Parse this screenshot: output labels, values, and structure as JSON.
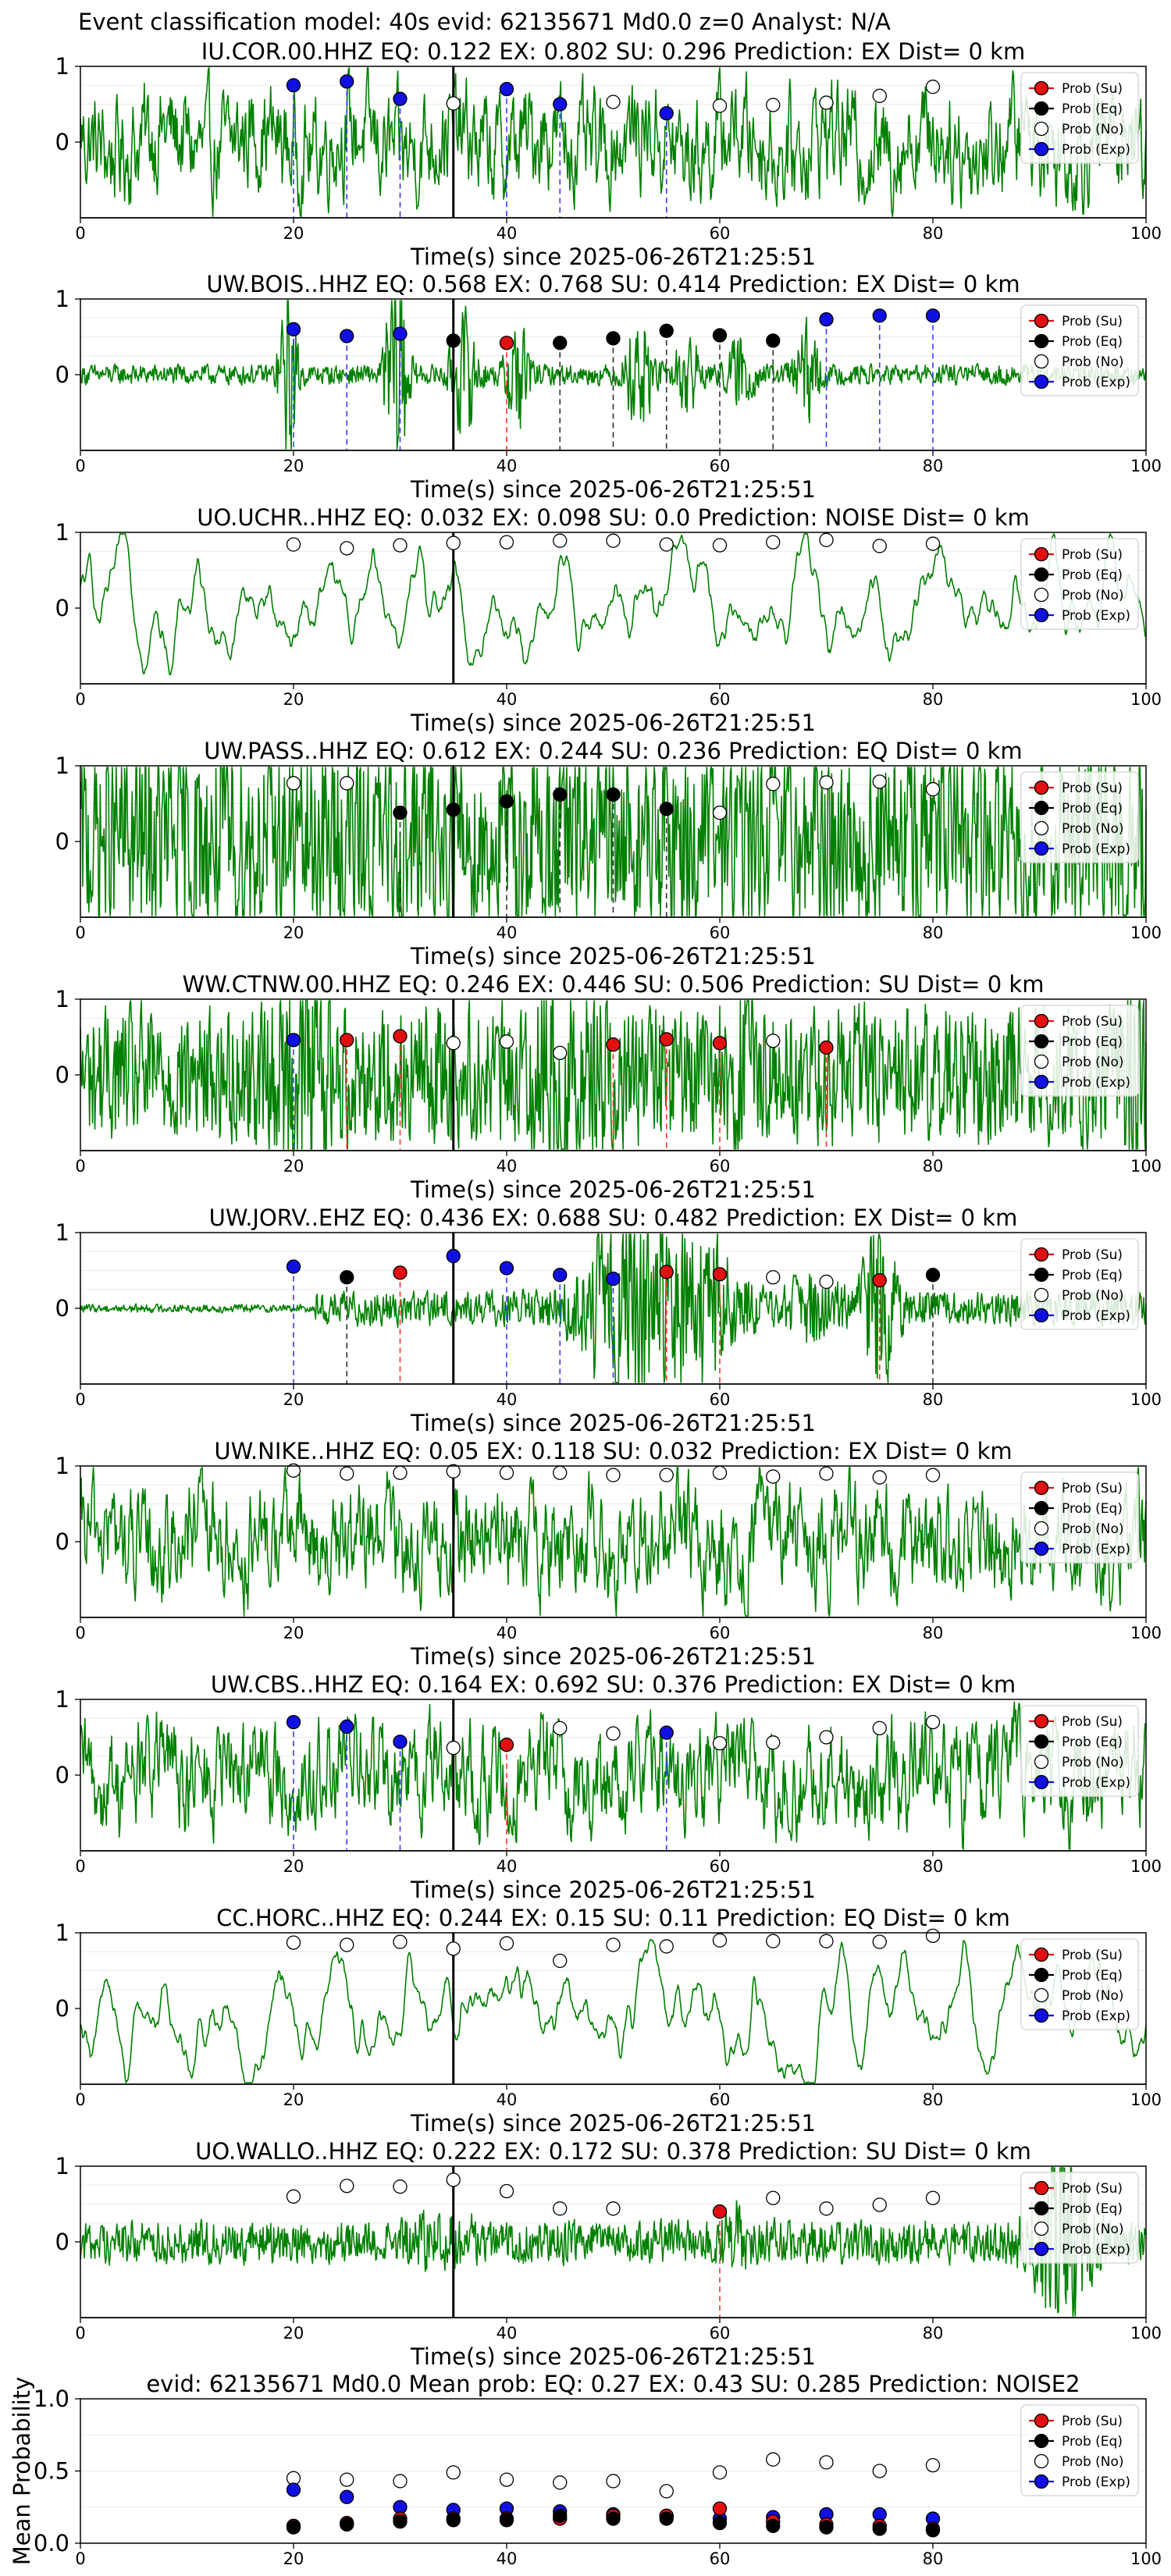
{
  "figure": {
    "suptitle": "Event classification model: 40s evid: 62135671 Md0.0 z=0 Analyst: N/A",
    "xlabel": "Time(s) since 2025-06-26T21:25:51",
    "legend": [
      "Prob (Su)",
      "Prob (Eq)",
      "Prob (No)",
      "Prob (Exp)"
    ],
    "colors": {
      "trace": "#008000",
      "su": "#e01010",
      "eq": "#000000",
      "no": "#ffffff",
      "exp": "#1010e0",
      "dash_exp": "#3a3aff",
      "dash_eq": "#303030",
      "dash_su": "#ff3030",
      "pick_line": "#000000"
    }
  },
  "chart_data": [
    {
      "type": "line",
      "title": "IU.COR.00.HHZ   EQ: 0.122  EX: 0.802  SU: 0.296   Prediction: EX    Dist= 0 km",
      "xlim": [
        0,
        100
      ],
      "ylim": [
        -1,
        1
      ],
      "xticks": [
        0,
        20,
        40,
        60,
        80,
        100
      ],
      "yticks": [
        0,
        1
      ],
      "pick_time": 35,
      "envelope": "noisy",
      "points": [
        {
          "x": 20,
          "y": 0.75,
          "c": "exp"
        },
        {
          "x": 25,
          "y": 0.8,
          "c": "exp"
        },
        {
          "x": 30,
          "y": 0.57,
          "c": "exp"
        },
        {
          "x": 35,
          "y": 0.51,
          "c": "no"
        },
        {
          "x": 40,
          "y": 0.7,
          "c": "exp"
        },
        {
          "x": 45,
          "y": 0.5,
          "c": "exp"
        },
        {
          "x": 50,
          "y": 0.53,
          "c": "no"
        },
        {
          "x": 55,
          "y": 0.38,
          "c": "exp"
        },
        {
          "x": 60,
          "y": 0.48,
          "c": "no"
        },
        {
          "x": 65,
          "y": 0.49,
          "c": "no"
        },
        {
          "x": 70,
          "y": 0.52,
          "c": "no"
        },
        {
          "x": 75,
          "y": 0.61,
          "c": "no"
        },
        {
          "x": 80,
          "y": 0.73,
          "c": "no"
        }
      ]
    },
    {
      "type": "line",
      "title": "UW.BOIS..HHZ   EQ: 0.568  EX: 0.768  SU: 0.414   Prediction: EX    Dist= 0 km",
      "xlim": [
        0,
        100
      ],
      "ylim": [
        -1,
        1
      ],
      "xticks": [
        0,
        20,
        40,
        60,
        80,
        100
      ],
      "yticks": [
        0,
        1
      ],
      "pick_time": 35,
      "envelope": "quiet_bursts",
      "points": [
        {
          "x": 20,
          "y": 0.6,
          "c": "exp"
        },
        {
          "x": 25,
          "y": 0.51,
          "c": "exp"
        },
        {
          "x": 30,
          "y": 0.54,
          "c": "exp"
        },
        {
          "x": 35,
          "y": 0.45,
          "c": "eq"
        },
        {
          "x": 40,
          "y": 0.42,
          "c": "su"
        },
        {
          "x": 45,
          "y": 0.42,
          "c": "eq"
        },
        {
          "x": 50,
          "y": 0.48,
          "c": "eq"
        },
        {
          "x": 55,
          "y": 0.58,
          "c": "eq"
        },
        {
          "x": 60,
          "y": 0.52,
          "c": "eq"
        },
        {
          "x": 65,
          "y": 0.45,
          "c": "eq"
        },
        {
          "x": 70,
          "y": 0.73,
          "c": "exp"
        },
        {
          "x": 75,
          "y": 0.78,
          "c": "exp"
        },
        {
          "x": 80,
          "y": 0.78,
          "c": "exp"
        }
      ]
    },
    {
      "type": "line",
      "title": "UO.UCHR..HHZ   EQ: 0.032  EX: 0.098  SU: 0.0   Prediction: NOISE    Dist= 0 km",
      "xlim": [
        0,
        100
      ],
      "ylim": [
        -1,
        1
      ],
      "xticks": [
        0,
        20,
        40,
        60,
        80,
        100
      ],
      "yticks": [
        0,
        1
      ],
      "pick_time": 35,
      "envelope": "smooth",
      "points": [
        {
          "x": 20,
          "y": 0.84,
          "c": "no"
        },
        {
          "x": 25,
          "y": 0.79,
          "c": "no"
        },
        {
          "x": 30,
          "y": 0.83,
          "c": "no"
        },
        {
          "x": 35,
          "y": 0.86,
          "c": "no"
        },
        {
          "x": 40,
          "y": 0.87,
          "c": "no"
        },
        {
          "x": 45,
          "y": 0.89,
          "c": "no"
        },
        {
          "x": 50,
          "y": 0.89,
          "c": "no"
        },
        {
          "x": 55,
          "y": 0.84,
          "c": "no"
        },
        {
          "x": 60,
          "y": 0.83,
          "c": "no"
        },
        {
          "x": 65,
          "y": 0.87,
          "c": "no"
        },
        {
          "x": 70,
          "y": 0.9,
          "c": "no"
        },
        {
          "x": 75,
          "y": 0.82,
          "c": "no"
        },
        {
          "x": 80,
          "y": 0.85,
          "c": "no"
        }
      ]
    },
    {
      "type": "line",
      "title": "UW.PASS..HHZ   EQ: 0.612  EX: 0.244  SU: 0.236   Prediction: EQ    Dist= 0 km",
      "xlim": [
        0,
        100
      ],
      "ylim": [
        -1,
        1
      ],
      "xticks": [
        0,
        20,
        40,
        60,
        80,
        100
      ],
      "yticks": [
        0,
        1
      ],
      "pick_time": 35,
      "envelope": "dense",
      "points": [
        {
          "x": 20,
          "y": 0.77,
          "c": "no"
        },
        {
          "x": 25,
          "y": 0.77,
          "c": "no"
        },
        {
          "x": 30,
          "y": 0.38,
          "c": "eq"
        },
        {
          "x": 35,
          "y": 0.42,
          "c": "eq"
        },
        {
          "x": 40,
          "y": 0.53,
          "c": "eq"
        },
        {
          "x": 45,
          "y": 0.62,
          "c": "eq"
        },
        {
          "x": 50,
          "y": 0.62,
          "c": "eq"
        },
        {
          "x": 55,
          "y": 0.43,
          "c": "eq"
        },
        {
          "x": 60,
          "y": 0.38,
          "c": "no"
        },
        {
          "x": 65,
          "y": 0.76,
          "c": "no"
        },
        {
          "x": 70,
          "y": 0.78,
          "c": "no"
        },
        {
          "x": 75,
          "y": 0.79,
          "c": "no"
        },
        {
          "x": 80,
          "y": 0.69,
          "c": "no"
        }
      ]
    },
    {
      "type": "line",
      "title": "WW.CTNW.00.HHZ   EQ: 0.246  EX: 0.446  SU: 0.506   Prediction: SU    Dist= 0 km",
      "xlim": [
        0,
        100
      ],
      "ylim": [
        -1,
        1
      ],
      "xticks": [
        0,
        20,
        40,
        60,
        80,
        100
      ],
      "yticks": [
        0,
        1
      ],
      "pick_time": 35,
      "envelope": "dense_bursts",
      "points": [
        {
          "x": 20,
          "y": 0.46,
          "c": "exp"
        },
        {
          "x": 25,
          "y": 0.46,
          "c": "su"
        },
        {
          "x": 30,
          "y": 0.51,
          "c": "su"
        },
        {
          "x": 35,
          "y": 0.42,
          "c": "no"
        },
        {
          "x": 40,
          "y": 0.44,
          "c": "no"
        },
        {
          "x": 45,
          "y": 0.29,
          "c": "no"
        },
        {
          "x": 50,
          "y": 0.4,
          "c": "su"
        },
        {
          "x": 55,
          "y": 0.47,
          "c": "su"
        },
        {
          "x": 60,
          "y": 0.42,
          "c": "su"
        },
        {
          "x": 65,
          "y": 0.45,
          "c": "no"
        },
        {
          "x": 70,
          "y": 0.36,
          "c": "su"
        }
      ]
    },
    {
      "type": "line",
      "title": "UW.JORV..EHZ   EQ: 0.436  EX: 0.688  SU: 0.482   Prediction: EX    Dist= 0 km",
      "xlim": [
        0,
        100
      ],
      "ylim": [
        -1,
        1
      ],
      "xticks": [
        0,
        20,
        40,
        60,
        80,
        100
      ],
      "yticks": [
        0,
        1
      ],
      "pick_time": 35,
      "envelope": "event",
      "points": [
        {
          "x": 20,
          "y": 0.55,
          "c": "exp"
        },
        {
          "x": 25,
          "y": 0.41,
          "c": "eq"
        },
        {
          "x": 30,
          "y": 0.47,
          "c": "su"
        },
        {
          "x": 35,
          "y": 0.69,
          "c": "exp"
        },
        {
          "x": 40,
          "y": 0.53,
          "c": "exp"
        },
        {
          "x": 45,
          "y": 0.44,
          "c": "exp"
        },
        {
          "x": 50,
          "y": 0.39,
          "c": "exp"
        },
        {
          "x": 55,
          "y": 0.48,
          "c": "su"
        },
        {
          "x": 60,
          "y": 0.45,
          "c": "su"
        },
        {
          "x": 65,
          "y": 0.41,
          "c": "no"
        },
        {
          "x": 70,
          "y": 0.35,
          "c": "no"
        },
        {
          "x": 75,
          "y": 0.37,
          "c": "su"
        },
        {
          "x": 80,
          "y": 0.44,
          "c": "eq"
        }
      ]
    },
    {
      "type": "line",
      "title": "UW.NIKE..HHZ   EQ: 0.05  EX: 0.118  SU: 0.032   Prediction: EX    Dist= 0 km",
      "xlim": [
        0,
        100
      ],
      "ylim": [
        -1,
        1
      ],
      "xticks": [
        0,
        20,
        40,
        60,
        80,
        100
      ],
      "yticks": [
        0,
        1
      ],
      "pick_time": 35,
      "envelope": "noisy",
      "points": [
        {
          "x": 20,
          "y": 0.94,
          "c": "no"
        },
        {
          "x": 25,
          "y": 0.9,
          "c": "no"
        },
        {
          "x": 30,
          "y": 0.91,
          "c": "no"
        },
        {
          "x": 35,
          "y": 0.93,
          "c": "no"
        },
        {
          "x": 40,
          "y": 0.91,
          "c": "no"
        },
        {
          "x": 45,
          "y": 0.91,
          "c": "no"
        },
        {
          "x": 50,
          "y": 0.88,
          "c": "no"
        },
        {
          "x": 55,
          "y": 0.88,
          "c": "no"
        },
        {
          "x": 60,
          "y": 0.91,
          "c": "no"
        },
        {
          "x": 65,
          "y": 0.86,
          "c": "no"
        },
        {
          "x": 70,
          "y": 0.9,
          "c": "no"
        },
        {
          "x": 75,
          "y": 0.85,
          "c": "no"
        },
        {
          "x": 80,
          "y": 0.88,
          "c": "no"
        }
      ]
    },
    {
      "type": "line",
      "title": "UW.CBS..HHZ   EQ: 0.164  EX: 0.692  SU: 0.376   Prediction: EX    Dist= 0 km",
      "xlim": [
        0,
        100
      ],
      "ylim": [
        -1,
        1
      ],
      "xticks": [
        0,
        20,
        40,
        60,
        80,
        100
      ],
      "yticks": [
        0,
        1
      ],
      "pick_time": 35,
      "envelope": "noisy",
      "points": [
        {
          "x": 20,
          "y": 0.7,
          "c": "exp"
        },
        {
          "x": 25,
          "y": 0.64,
          "c": "exp"
        },
        {
          "x": 30,
          "y": 0.44,
          "c": "exp"
        },
        {
          "x": 35,
          "y": 0.36,
          "c": "no"
        },
        {
          "x": 40,
          "y": 0.4,
          "c": "su"
        },
        {
          "x": 45,
          "y": 0.62,
          "c": "no"
        },
        {
          "x": 50,
          "y": 0.55,
          "c": "no"
        },
        {
          "x": 55,
          "y": 0.56,
          "c": "exp"
        },
        {
          "x": 60,
          "y": 0.42,
          "c": "no"
        },
        {
          "x": 65,
          "y": 0.43,
          "c": "no"
        },
        {
          "x": 70,
          "y": 0.5,
          "c": "no"
        },
        {
          "x": 75,
          "y": 0.62,
          "c": "no"
        },
        {
          "x": 80,
          "y": 0.7,
          "c": "no"
        }
      ]
    },
    {
      "type": "line",
      "title": "CC.HORC..HHZ   EQ: 0.244  EX: 0.15  SU: 0.11   Prediction: EQ    Dist= 0 km",
      "xlim": [
        0,
        100
      ],
      "ylim": [
        -1,
        1
      ],
      "xticks": [
        0,
        20,
        40,
        60,
        80,
        100
      ],
      "yticks": [
        0,
        1
      ],
      "pick_time": 35,
      "envelope": "smooth",
      "points": [
        {
          "x": 20,
          "y": 0.87,
          "c": "no"
        },
        {
          "x": 25,
          "y": 0.84,
          "c": "no"
        },
        {
          "x": 30,
          "y": 0.88,
          "c": "no"
        },
        {
          "x": 35,
          "y": 0.79,
          "c": "no"
        },
        {
          "x": 40,
          "y": 0.86,
          "c": "no"
        },
        {
          "x": 45,
          "y": 0.63,
          "c": "no"
        },
        {
          "x": 50,
          "y": 0.84,
          "c": "no"
        },
        {
          "x": 55,
          "y": 0.82,
          "c": "no"
        },
        {
          "x": 60,
          "y": 0.9,
          "c": "no"
        },
        {
          "x": 65,
          "y": 0.89,
          "c": "no"
        },
        {
          "x": 70,
          "y": 0.89,
          "c": "no"
        },
        {
          "x": 75,
          "y": 0.88,
          "c": "no"
        },
        {
          "x": 80,
          "y": 0.96,
          "c": "no"
        }
      ]
    },
    {
      "type": "line",
      "title": "UO.WALLO..HHZ   EQ: 0.222  EX: 0.172  SU: 0.378   Prediction: SU    Dist= 0 km",
      "xlim": [
        0,
        100
      ],
      "ylim": [
        -1,
        1
      ],
      "xticks": [
        0,
        20,
        40,
        60,
        80,
        100
      ],
      "yticks": [
        0,
        1
      ],
      "pick_time": 35,
      "envelope": "moderate",
      "points": [
        {
          "x": 20,
          "y": 0.6,
          "c": "no"
        },
        {
          "x": 25,
          "y": 0.74,
          "c": "no"
        },
        {
          "x": 30,
          "y": 0.73,
          "c": "no"
        },
        {
          "x": 35,
          "y": 0.82,
          "c": "no"
        },
        {
          "x": 40,
          "y": 0.67,
          "c": "no"
        },
        {
          "x": 45,
          "y": 0.44,
          "c": "no"
        },
        {
          "x": 50,
          "y": 0.44,
          "c": "no"
        },
        {
          "x": 60,
          "y": 0.4,
          "c": "su"
        },
        {
          "x": 65,
          "y": 0.58,
          "c": "no"
        },
        {
          "x": 70,
          "y": 0.44,
          "c": "no"
        },
        {
          "x": 75,
          "y": 0.49,
          "c": "no"
        },
        {
          "x": 80,
          "y": 0.58,
          "c": "no"
        }
      ]
    },
    {
      "type": "scatter",
      "title": "evid: 62135671   Md0.0    Mean prob:   EQ: 0.27  EX: 0.43  SU: 0.285   Prediction: NOISE2",
      "ylabel": "Mean Probability",
      "xlim": [
        0,
        100
      ],
      "ylim": [
        0,
        1
      ],
      "xticks": [
        0,
        20,
        40,
        60,
        80,
        100
      ],
      "yticks": [
        0.0,
        0.5,
        1.0
      ],
      "x": [
        20,
        25,
        30,
        35,
        40,
        45,
        50,
        55,
        60,
        65,
        70,
        75,
        80
      ],
      "series": [
        {
          "name": "Prob (No)",
          "key": "no",
          "values": [
            0.45,
            0.44,
            0.43,
            0.49,
            0.44,
            0.42,
            0.43,
            0.36,
            0.49,
            0.58,
            0.56,
            0.5,
            0.54
          ]
        },
        {
          "name": "Prob (Exp)",
          "key": "exp",
          "values": [
            0.37,
            0.32,
            0.25,
            0.23,
            0.24,
            0.22,
            0.2,
            0.19,
            0.17,
            0.18,
            0.2,
            0.2,
            0.17
          ]
        },
        {
          "name": "Prob (Su)",
          "key": "su",
          "values": [
            0.12,
            0.14,
            0.17,
            0.17,
            0.17,
            0.17,
            0.19,
            0.19,
            0.24,
            0.15,
            0.13,
            0.12,
            0.1
          ]
        },
        {
          "name": "Prob (Eq)",
          "key": "eq",
          "values": [
            0.11,
            0.13,
            0.15,
            0.16,
            0.16,
            0.19,
            0.17,
            0.17,
            0.14,
            0.12,
            0.11,
            0.1,
            0.09
          ]
        }
      ]
    }
  ]
}
